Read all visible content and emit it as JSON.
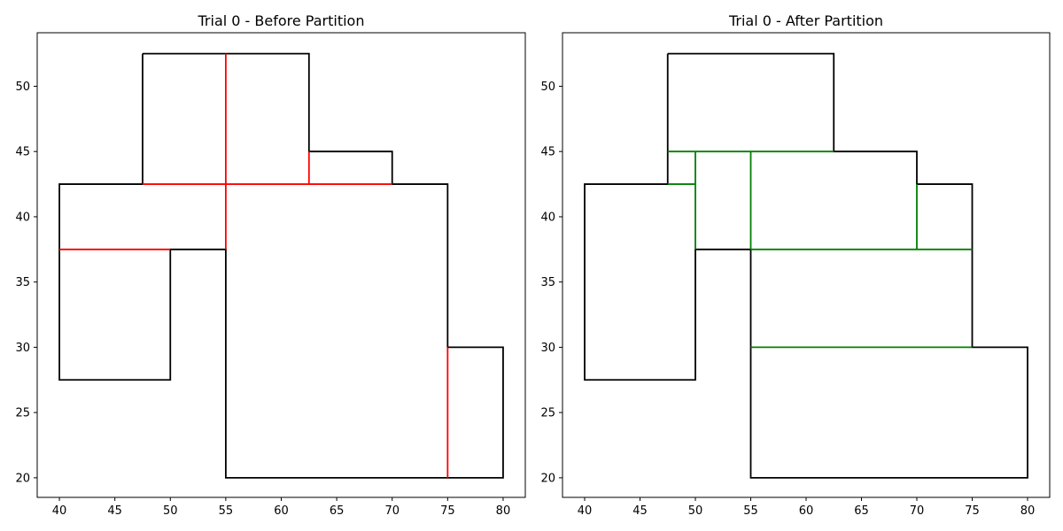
{
  "chart_data": [
    {
      "type": "line",
      "title": "Trial 0 - Before Partition",
      "xlim": [
        38,
        82
      ],
      "ylim": [
        18.5,
        54.1
      ],
      "xticks": [
        40,
        45,
        50,
        55,
        60,
        65,
        70,
        75,
        80
      ],
      "yticks": [
        20,
        25,
        30,
        35,
        40,
        45,
        50
      ],
      "grid": false,
      "series": [
        {
          "color": "#000000",
          "kind": "boundary",
          "points": [
            [
              47.5,
              52.5
            ],
            [
              62.5,
              52.5
            ],
            [
              62.5,
              45
            ],
            [
              70,
              45
            ],
            [
              70,
              42.5
            ],
            [
              75,
              42.5
            ],
            [
              75,
              30
            ],
            [
              80,
              30
            ],
            [
              80,
              20
            ],
            [
              55,
              20
            ],
            [
              55,
              37.5
            ],
            [
              50,
              37.5
            ],
            [
              50,
              27.5
            ],
            [
              40,
              27.5
            ],
            [
              40,
              42.5
            ],
            [
              47.5,
              42.5
            ],
            [
              47.5,
              52.5
            ]
          ]
        },
        {
          "color": "#ff0000",
          "kind": "partition",
          "points": [
            [
              55,
              52.5
            ],
            [
              55,
              37.5
            ]
          ]
        },
        {
          "color": "#ff0000",
          "kind": "partition",
          "points": [
            [
              47.5,
              42.5
            ],
            [
              70,
              42.5
            ]
          ]
        },
        {
          "color": "#ff0000",
          "kind": "partition",
          "points": [
            [
              62.5,
              45
            ],
            [
              62.5,
              42.5
            ]
          ]
        },
        {
          "color": "#ff0000",
          "kind": "partition",
          "points": [
            [
              40,
              37.5
            ],
            [
              50,
              37.5
            ]
          ]
        },
        {
          "color": "#ff0000",
          "kind": "partition",
          "points": [
            [
              75,
              30
            ],
            [
              75,
              20
            ]
          ]
        }
      ]
    },
    {
      "type": "line",
      "title": "Trial 0 - After Partition",
      "xlim": [
        38,
        82
      ],
      "ylim": [
        18.5,
        54.1
      ],
      "xticks": [
        40,
        45,
        50,
        55,
        60,
        65,
        70,
        75,
        80
      ],
      "yticks": [
        20,
        25,
        30,
        35,
        40,
        45,
        50
      ],
      "grid": false,
      "series": [
        {
          "color": "#000000",
          "kind": "boundary",
          "points": [
            [
              47.5,
              52.5
            ],
            [
              62.5,
              52.5
            ],
            [
              62.5,
              45
            ],
            [
              70,
              45
            ],
            [
              70,
              42.5
            ],
            [
              75,
              42.5
            ],
            [
              75,
              30
            ],
            [
              80,
              30
            ],
            [
              80,
              20
            ],
            [
              55,
              20
            ],
            [
              55,
              37.5
            ],
            [
              50,
              37.5
            ],
            [
              50,
              27.5
            ],
            [
              40,
              27.5
            ],
            [
              40,
              42.5
            ],
            [
              47.5,
              42.5
            ],
            [
              47.5,
              52.5
            ]
          ]
        },
        {
          "color": "#008000",
          "kind": "partition",
          "points": [
            [
              47.5,
              45
            ],
            [
              62.5,
              45
            ]
          ]
        },
        {
          "color": "#008000",
          "kind": "partition",
          "points": [
            [
              47.5,
              42.5
            ],
            [
              50,
              42.5
            ]
          ]
        },
        {
          "color": "#008000",
          "kind": "partition",
          "points": [
            [
              50,
              45
            ],
            [
              50,
              37.5
            ]
          ]
        },
        {
          "color": "#008000",
          "kind": "partition",
          "points": [
            [
              55,
              45
            ],
            [
              55,
              37.5
            ]
          ]
        },
        {
          "color": "#008000",
          "kind": "partition",
          "points": [
            [
              55,
              37.5
            ],
            [
              75,
              37.5
            ]
          ]
        },
        {
          "color": "#008000",
          "kind": "partition",
          "points": [
            [
              70,
              42.5
            ],
            [
              70,
              37.5
            ]
          ]
        },
        {
          "color": "#008000",
          "kind": "partition",
          "points": [
            [
              55,
              30
            ],
            [
              75,
              30
            ]
          ]
        }
      ]
    }
  ]
}
